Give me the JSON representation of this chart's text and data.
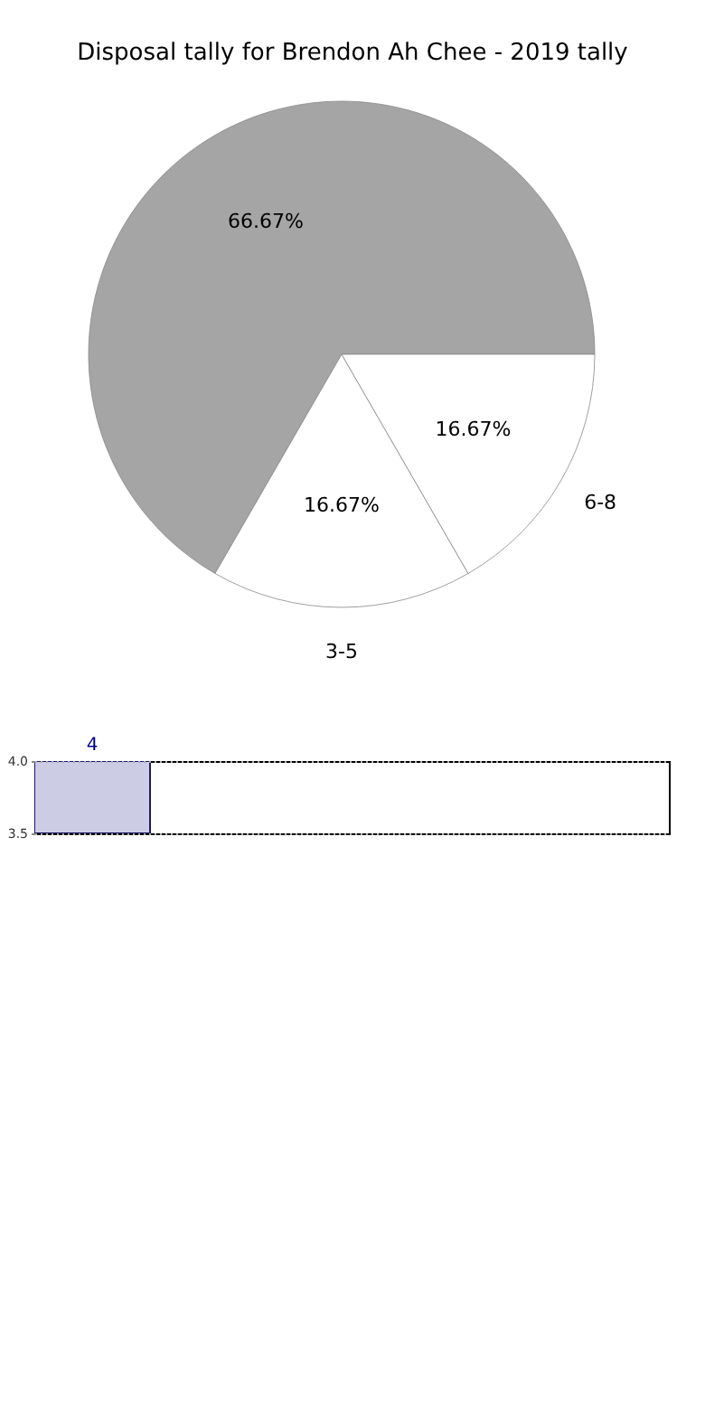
{
  "chart_data": [
    {
      "type": "pie",
      "title": "Disposal tally for Brendon Ah Chee - 2019 tally",
      "categories": [
        null,
        "3-5",
        "6-8"
      ],
      "values": [
        66.67,
        16.67,
        16.67
      ],
      "colors": [
        "#a5a5a5",
        "#ffffff",
        "#ffffff"
      ],
      "value_labels": [
        "66.67%",
        "16.67%",
        "16.67%"
      ]
    },
    {
      "type": "bar",
      "categories": [
        null,
        null,
        null,
        null,
        null
      ],
      "values": [
        4,
        null,
        null,
        null,
        null
      ],
      "color": "#ccccE4",
      "ylim": [
        3.5,
        4.0
      ],
      "yticks": [
        {
          "value": 3.5,
          "label": "3.5"
        },
        {
          "value": 4,
          "label": "4.0"
        }
      ],
      "grid": "y",
      "data_labels": true
    }
  ]
}
